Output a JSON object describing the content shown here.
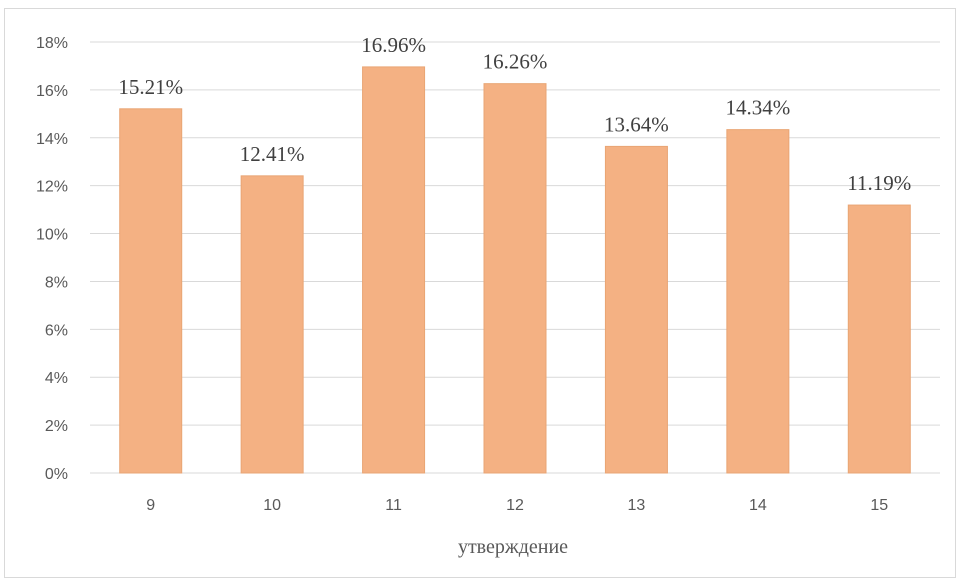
{
  "chart_data": {
    "type": "bar",
    "categories": [
      "9",
      "10",
      "11",
      "12",
      "13",
      "14",
      "15"
    ],
    "values": [
      15.21,
      12.41,
      16.96,
      16.26,
      13.64,
      14.34,
      11.19
    ],
    "data_labels": [
      "15.21%",
      "12.41%",
      "16.96%",
      "16.26%",
      "13.64%",
      "14.34%",
      "11.19%"
    ],
    "y_tick_labels": [
      "0%",
      "2%",
      "4%",
      "6%",
      "8%",
      "10%",
      "12%",
      "14%",
      "16%",
      "18%"
    ],
    "ylim": [
      0,
      18
    ],
    "xlabel": "утверждение",
    "ylabel": "",
    "title": "",
    "grid": true,
    "legend": "none",
    "colors": {
      "bar": "#f4b183",
      "bar_edge": "#e9a574",
      "grid": "#d9d9d9",
      "axis_text": "#595959",
      "label_text": "#404040"
    }
  }
}
